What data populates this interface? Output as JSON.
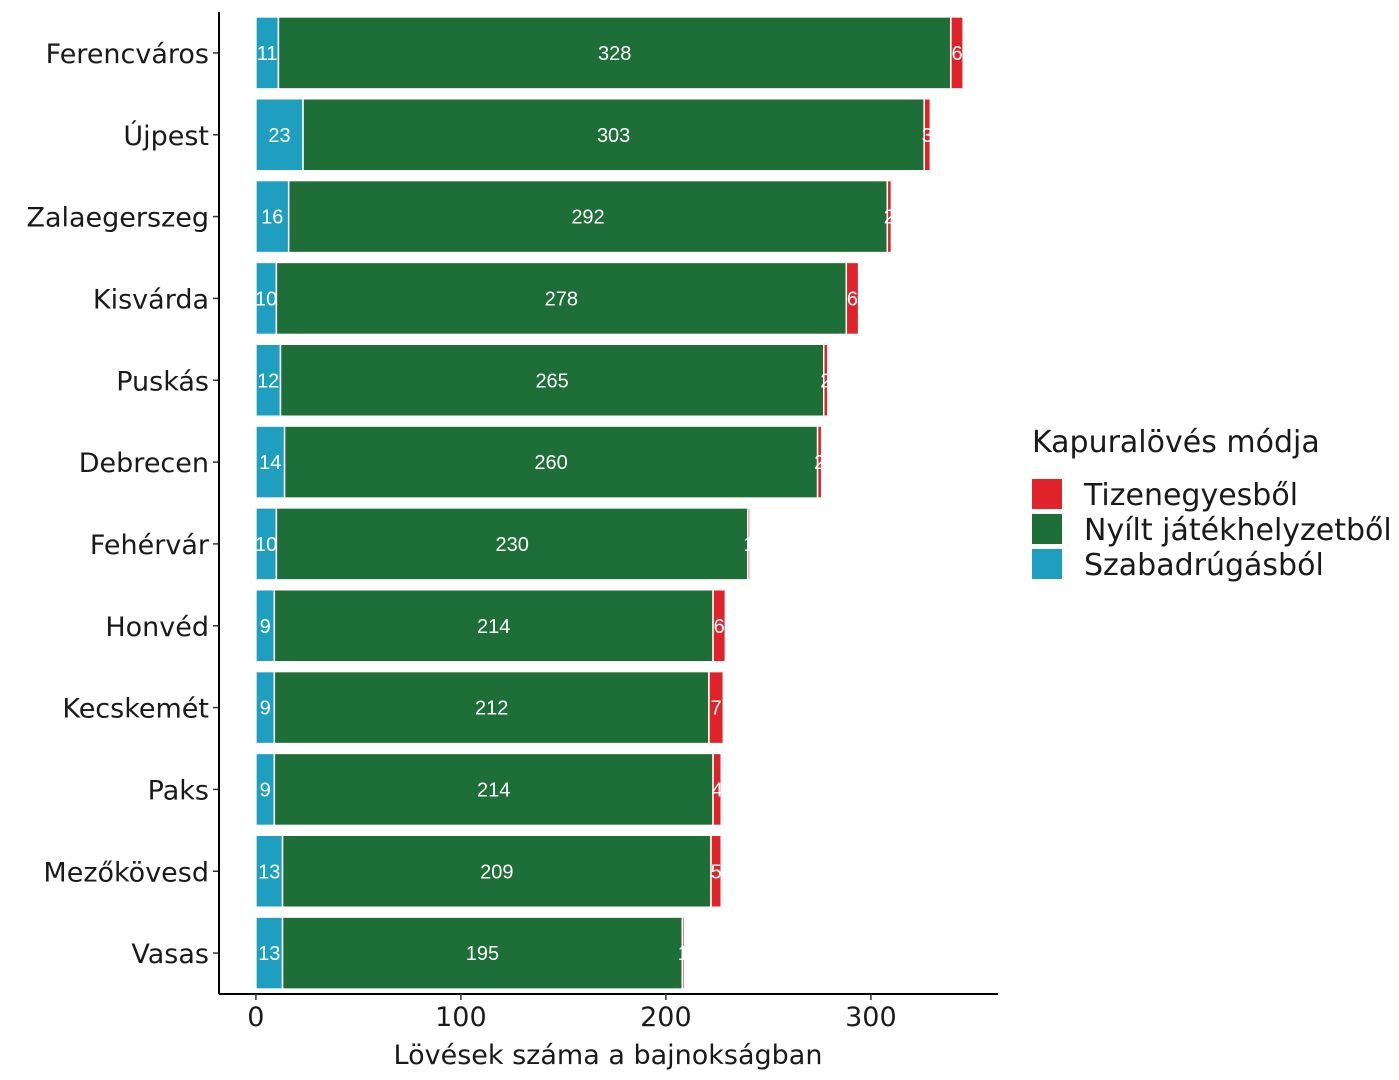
{
  "chart_data": {
    "type": "bar",
    "orientation": "horizontal",
    "stacked": true,
    "categories": [
      "Ferencváros",
      "Újpest",
      "Zalaegerszeg",
      "Kisvárda",
      "Puskás",
      "Debrecen",
      "Fehérvár",
      "Honvéd",
      "Kecskemét",
      "Paks",
      "Mezőkövesd",
      "Vasas"
    ],
    "series": [
      {
        "name": "Szabadrúgásból",
        "color": "#1f9fc0",
        "values": [
          11,
          23,
          16,
          10,
          12,
          14,
          10,
          9,
          9,
          9,
          13,
          13
        ]
      },
      {
        "name": "Nyílt játékhelyzetből",
        "color": "#1e6e37",
        "values": [
          328,
          303,
          292,
          278,
          265,
          260,
          230,
          214,
          212,
          214,
          209,
          195
        ]
      },
      {
        "name": "Tizenegyesből",
        "color": "#e0232a",
        "values": [
          6,
          3,
          2,
          6,
          2,
          2,
          1,
          6,
          7,
          4,
          5,
          1
        ]
      }
    ],
    "xlabel": "Lövések száma a bajnokságban",
    "ylabel": "",
    "xlim": [
      -18,
      362
    ],
    "xticks": [
      0,
      100,
      200,
      300
    ],
    "legend": {
      "title": "Kapuralövés módja",
      "position": "right",
      "order": [
        "Tizenegyesből",
        "Nyílt játékhelyzetből",
        "Szabadrúgásból"
      ]
    },
    "grid": false
  }
}
